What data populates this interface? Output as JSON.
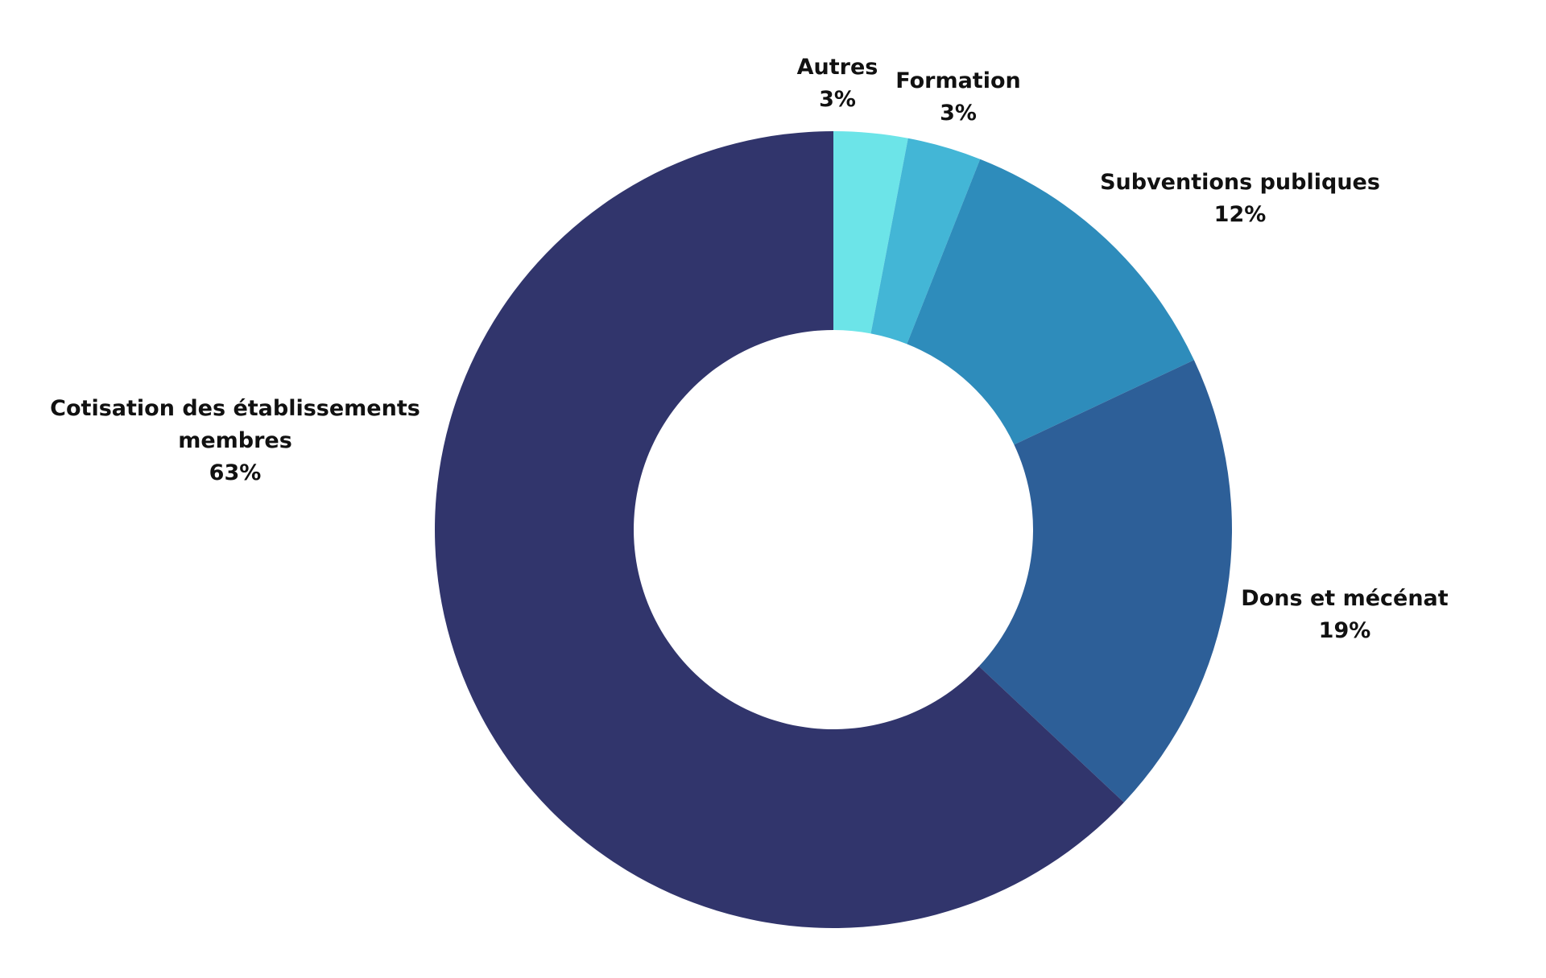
{
  "chart_data": {
    "type": "pie",
    "donut": true,
    "start_angle_deg": 0,
    "direction": "clockwise",
    "slices": [
      {
        "label": "Autres",
        "value": 3,
        "value_label": "3%",
        "color": "#6ce4e8"
      },
      {
        "label": "Formation",
        "value": 3,
        "value_label": "3%",
        "color": "#43b6d6"
      },
      {
        "label": "Subventions publiques",
        "value": 12,
        "value_label": "12%",
        "color": "#2e8cbb"
      },
      {
        "label": "Dons et mécénat",
        "value": 19,
        "value_label": "19%",
        "color": "#2d5f98"
      },
      {
        "label": "Cotisation des établissements\nmembres",
        "value": 63,
        "value_label": "63%",
        "color": "#31356c"
      }
    ]
  }
}
